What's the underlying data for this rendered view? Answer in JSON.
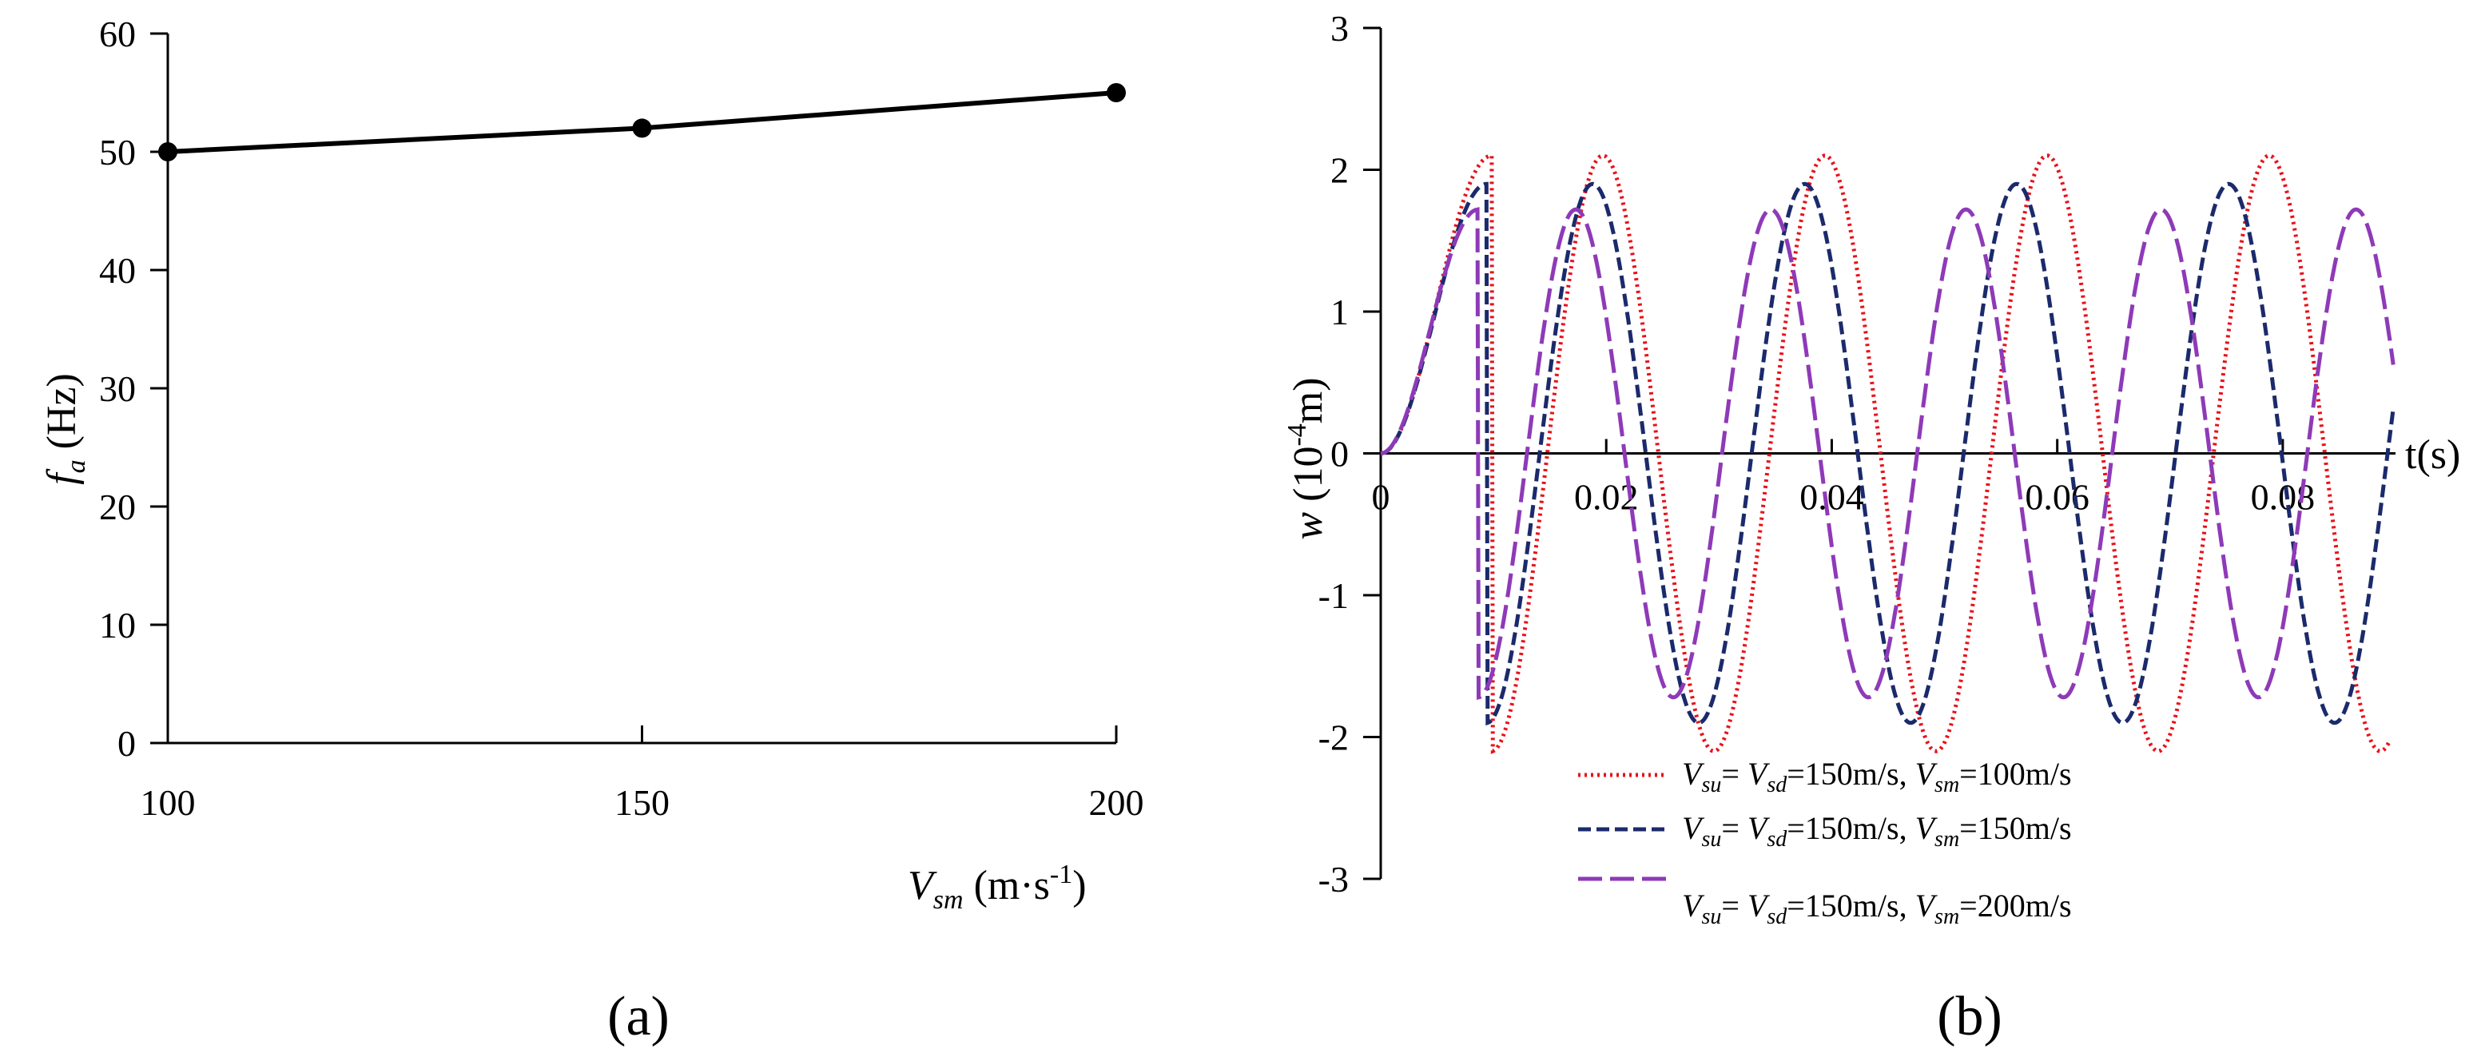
{
  "chart_data": [
    {
      "panel_label": "(a)",
      "type": "line",
      "x_label": {
        "main": "V",
        "sub": "sm",
        "units": "(m·s",
        "sup": "-1",
        "close": ")"
      },
      "y_label": {
        "main": "f",
        "sub": "a",
        "units": "(Hz)"
      },
      "x": [
        100,
        150,
        200
      ],
      "values": [
        50,
        52,
        55
      ],
      "xlim": [
        100,
        200
      ],
      "ylim": [
        0,
        60
      ],
      "x_ticks": [
        "100",
        "150",
        "200"
      ],
      "y_ticks": [
        "0",
        "10",
        "20",
        "30",
        "40",
        "50",
        "60"
      ],
      "markers": true,
      "color": "#000000"
    },
    {
      "panel_label": "(b)",
      "type": "line",
      "x_label": "t(s)",
      "y_label": {
        "main": "w",
        "units": "(10",
        "sup": "-4",
        "close": "m)"
      },
      "xlim": [
        0,
        0.09
      ],
      "ylim": [
        -3,
        3
      ],
      "x_ticks": [
        "0",
        "0.02",
        "0.04",
        "0.06",
        "0.08"
      ],
      "y_ticks": [
        "-3",
        "-2",
        "-1",
        "0",
        "1",
        "2",
        "3"
      ],
      "legend_position": "bottom-right",
      "series": [
        {
          "name": "Vsu= Vsd=150m/s, Vsm=100m/s",
          "legend": {
            "v1": "V",
            "s1": "su",
            "eq1": "= ",
            "v2": "V",
            "s2": "sd",
            "eq2": "=150m/s, ",
            "v3": "V",
            "s3": "sm",
            "eq3": "=100m/s"
          },
          "amplitude": 2.1,
          "period": 0.0197,
          "t_end": 0.0895,
          "color": "#e8121b",
          "dash": "dot"
        },
        {
          "name": "Vsu= Vsd=150m/s, Vsm=150m/s",
          "legend": {
            "v1": "V",
            "s1": "su",
            "eq1": "= ",
            "v2": "V",
            "s2": "sd",
            "eq2": "=150m/s, ",
            "v3": "V",
            "s3": "sm",
            "eq3": "=150m/s"
          },
          "amplitude": 1.9,
          "period": 0.0188,
          "t_end": 0.0898,
          "color": "#1b2a6b",
          "dash": "dash"
        },
        {
          "name": "Vsu= Vsd=150m/s, Vsm=200m/s",
          "legend": {
            "v1": "V",
            "s1": "su",
            "eq1": "= ",
            "v2": "V",
            "s2": "sd",
            "eq2": "=150m/s, ",
            "v3": "V",
            "s3": "sm",
            "eq3": "=200m/s"
          },
          "amplitude": 1.72,
          "period": 0.0173,
          "t_end": 0.0898,
          "color": "#8e3ab8",
          "dash": "longdash"
        }
      ]
    }
  ]
}
